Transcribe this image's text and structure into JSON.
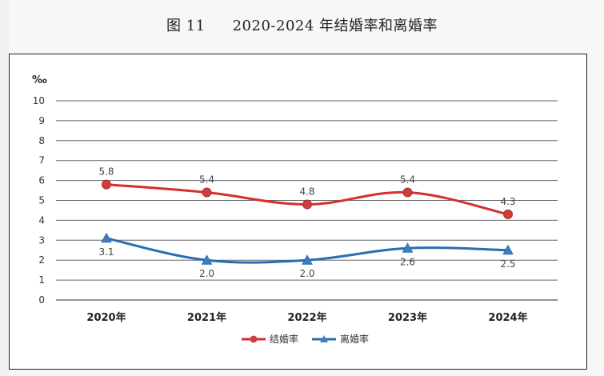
{
  "header": {
    "figure_no": "图 11",
    "title": "2020-2024 年结婚率和离婚率"
  },
  "chart_data": {
    "type": "line",
    "title": "2020-2024 年结婚率和离婚率",
    "ylabel": "‰",
    "xlabel": "",
    "categories": [
      "2020年",
      "2021年",
      "2022年",
      "2023年",
      "2024年"
    ],
    "ylim": [
      0,
      10
    ],
    "yticks": [
      0,
      1,
      2,
      3,
      4,
      5,
      6,
      7,
      8,
      9,
      10
    ],
    "grid": true,
    "legend_position": "bottom",
    "series": [
      {
        "name": "结婚率",
        "values": [
          5.8,
          5.4,
          4.8,
          5.4,
          4.3
        ],
        "color": "#d62e2e",
        "marker": "circle",
        "labels": [
          "5.8",
          "5.4",
          "4.8",
          "5.4",
          "4.3"
        ]
      },
      {
        "name": "离婚率",
        "values": [
          3.1,
          2.0,
          2.0,
          2.6,
          2.5
        ],
        "color": "#2a6eb0",
        "marker": "triangle",
        "labels": [
          "3.1",
          "2.0",
          "2.0",
          "2.6",
          "2.5"
        ]
      }
    ]
  }
}
